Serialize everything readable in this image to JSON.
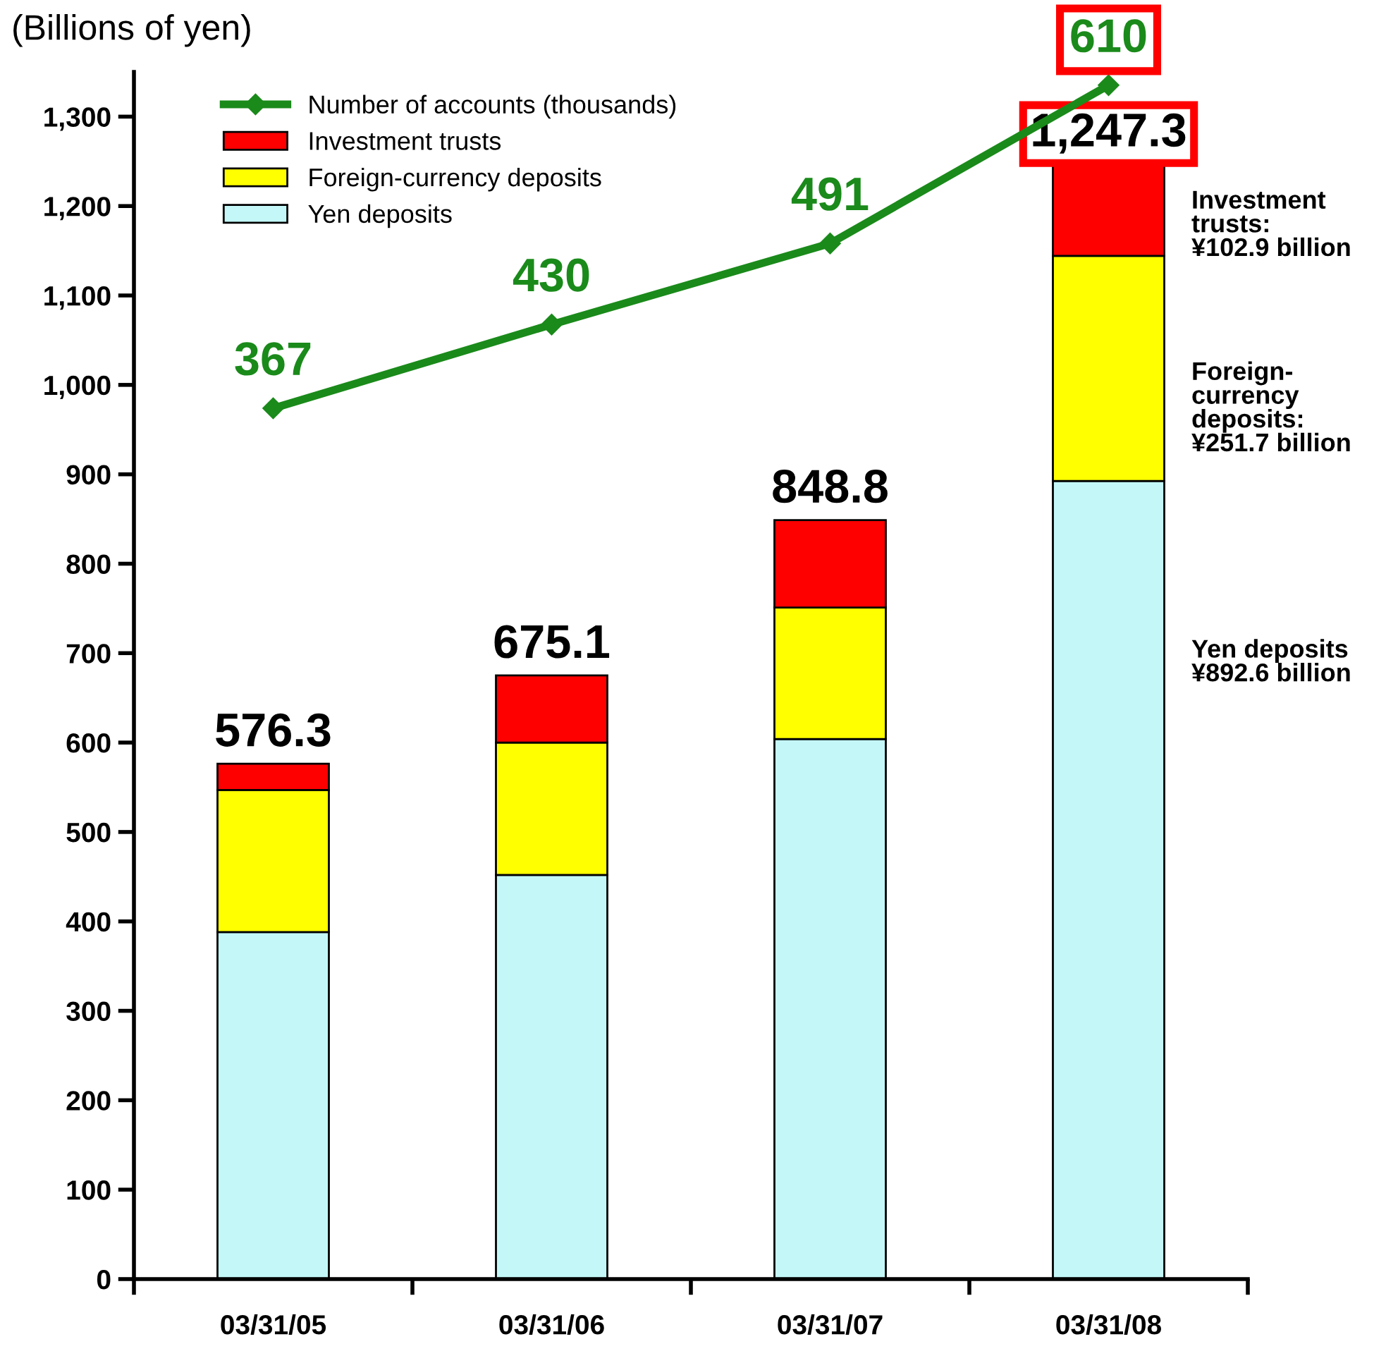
{
  "chart_data": {
    "type": "bar",
    "stacked": true,
    "ylabel": "(Billions of yen)",
    "categories": [
      "03/31/05",
      "03/31/06",
      "03/31/07",
      "03/31/08"
    ],
    "series": [
      {
        "name": "Yen deposits",
        "color": "#c4f8f8",
        "values": [
          388,
          452,
          604,
          892.6
        ]
      },
      {
        "name": "Foreign-currency deposits",
        "color": "#ffff00",
        "values": [
          159,
          148,
          147,
          251.7
        ]
      },
      {
        "name": "Investment trusts",
        "color": "#ff0000",
        "values": [
          29.3,
          75.1,
          97.8,
          102.9
        ]
      },
      {
        "name": "Number of accounts (thousands)",
        "type": "line",
        "axis": "y2",
        "color": "#1a8a1a",
        "marker": "diamond",
        "values": [
          367,
          430,
          491,
          610
        ],
        "value_labels": [
          "367",
          "430",
          "491",
          "610"
        ]
      }
    ],
    "totals": [
      "576.3",
      "675.1",
      "848.8",
      "1,247.3"
    ],
    "ylim": [
      0,
      1350
    ],
    "yticks": [
      0,
      {
        "value": 100,
        "label": "100"
      },
      200,
      300,
      400,
      500,
      600,
      700,
      800,
      900,
      {
        "value": 1000,
        "label": "1,000"
      },
      {
        "value": 1100,
        "label": "1,100"
      },
      {
        "value": 1200,
        "label": "1,200"
      },
      {
        "value": 1300,
        "label": "1,300"
      }
    ],
    "y2lim": [
      -288,
      620
    ],
    "legend": "top left",
    "grid": false,
    "annotations": [
      "Investment\ntrusts:\n¥102.9 billion",
      "Foreign-\ncurrency\ndeposits:\n¥251.7 billion",
      "Yen deposits\n¥892.6 billion"
    ]
  }
}
